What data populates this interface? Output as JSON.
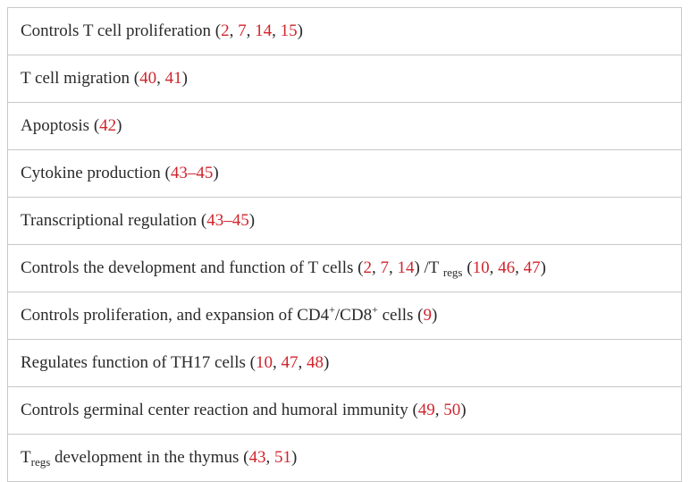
{
  "rows": [
    {
      "segments": [
        {
          "t": "Controls T cell proliferation ("
        },
        {
          "t": "2",
          "ref": true
        },
        {
          "t": ", "
        },
        {
          "t": "7",
          "ref": true
        },
        {
          "t": ", "
        },
        {
          "t": "14",
          "ref": true
        },
        {
          "t": ", "
        },
        {
          "t": "15",
          "ref": true
        },
        {
          "t": ")"
        }
      ]
    },
    {
      "segments": [
        {
          "t": "T cell migration ("
        },
        {
          "t": "40",
          "ref": true
        },
        {
          "t": ", "
        },
        {
          "t": "41",
          "ref": true
        },
        {
          "t": ")"
        }
      ]
    },
    {
      "segments": [
        {
          "t": "Apoptosis ("
        },
        {
          "t": "42",
          "ref": true
        },
        {
          "t": ")"
        }
      ]
    },
    {
      "segments": [
        {
          "t": "Cytokine production ("
        },
        {
          "t": "43–45",
          "ref": true
        },
        {
          "t": ")"
        }
      ]
    },
    {
      "segments": [
        {
          "t": "Transcriptional regulation ("
        },
        {
          "t": "43–45",
          "ref": true
        },
        {
          "t": ")"
        }
      ]
    },
    {
      "segments": [
        {
          "t": "Controls the development and function of T cells ("
        },
        {
          "t": "2",
          "ref": true
        },
        {
          "t": ", "
        },
        {
          "t": "7",
          "ref": true
        },
        {
          "t": ", "
        },
        {
          "t": "14",
          "ref": true
        },
        {
          "t": ") /T "
        },
        {
          "t": "regs",
          "sub": true
        },
        {
          "t": " ("
        },
        {
          "t": "10",
          "ref": true
        },
        {
          "t": ", "
        },
        {
          "t": "46",
          "ref": true
        },
        {
          "t": ", "
        },
        {
          "t": "47",
          "ref": true
        },
        {
          "t": ")"
        }
      ]
    },
    {
      "segments": [
        {
          "t": "Controls proliferation, and expansion of CD4"
        },
        {
          "t": "+",
          "sup": true
        },
        {
          "t": "/CD8"
        },
        {
          "t": "+",
          "sup": true
        },
        {
          "t": " cells ("
        },
        {
          "t": "9",
          "ref": true
        },
        {
          "t": ")"
        }
      ]
    },
    {
      "segments": [
        {
          "t": "Regulates function of TH17 cells ("
        },
        {
          "t": "10",
          "ref": true
        },
        {
          "t": ", "
        },
        {
          "t": "47",
          "ref": true
        },
        {
          "t": ", "
        },
        {
          "t": "48",
          "ref": true
        },
        {
          "t": ")"
        }
      ]
    },
    {
      "segments": [
        {
          "t": "Controls germinal center reaction and humoral immunity ("
        },
        {
          "t": "49",
          "ref": true
        },
        {
          "t": ", "
        },
        {
          "t": "50",
          "ref": true
        },
        {
          "t": ")"
        }
      ]
    },
    {
      "segments": [
        {
          "t": "T"
        },
        {
          "t": "regs",
          "sub": true
        },
        {
          "t": " development in the thymus ("
        },
        {
          "t": "43",
          "ref": true
        },
        {
          "t": ", "
        },
        {
          "t": "51",
          "ref": true
        },
        {
          "t": ")"
        }
      ]
    }
  ]
}
